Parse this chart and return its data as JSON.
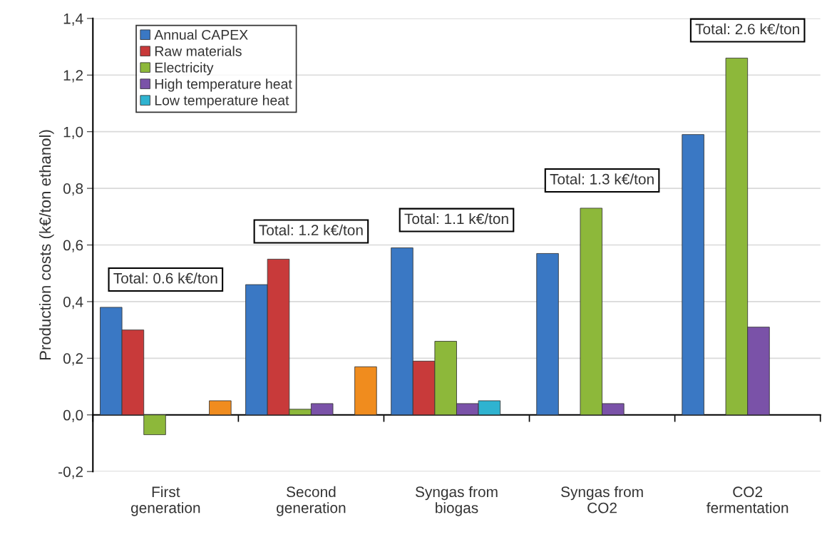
{
  "chart_data": {
    "type": "bar",
    "ylabel": "Production costs (k€/ton ethanol)",
    "categories": [
      "First\ngeneration",
      "Second\ngeneration",
      "Syngas from\nbiogas",
      "Syngas from\nCO2",
      "CO2\nfermentation"
    ],
    "series": [
      {
        "name": "Annual CAPEX",
        "color": "#3a78c4",
        "values": [
          0.38,
          0.46,
          0.59,
          0.57,
          0.99
        ]
      },
      {
        "name": "Raw materials",
        "color": "#c83a3a",
        "values": [
          0.3,
          0.55,
          0.19,
          null,
          null
        ]
      },
      {
        "name": "Electricity",
        "color": "#8db83a",
        "values": [
          -0.07,
          0.02,
          0.26,
          0.73,
          1.26
        ]
      },
      {
        "name": "High temperature heat",
        "color": "#7a52a8",
        "values": [
          null,
          0.04,
          0.04,
          0.04,
          0.31
        ]
      },
      {
        "name": "Low temperature heat",
        "color": "#2fb3d0",
        "values": [
          null,
          null,
          0.05,
          null,
          null
        ]
      },
      {
        "color": "#f08c1e",
        "values": [
          0.05,
          0.17,
          null,
          null,
          null
        ]
      }
    ],
    "ylim": [
      -0.2,
      1.4
    ],
    "yticks": [
      {
        "value": -0.2,
        "label": "-0,2"
      },
      {
        "value": 0,
        "label": "0,0"
      },
      {
        "value": 0.2,
        "label": "0,2"
      },
      {
        "value": 0.4,
        "label": "0,4"
      },
      {
        "value": 0.6,
        "label": "0,6"
      },
      {
        "value": 0.8,
        "label": "0,8"
      },
      {
        "value": 1.0,
        "label": "1,0"
      },
      {
        "value": 1.2,
        "label": "1,2"
      },
      {
        "value": 1.4,
        "label": "1,4"
      }
    ],
    "grid": "y",
    "legend": "top left",
    "annotations": [
      "Total: 0.6 k€/ton",
      "Total: 1.2 k€/ton",
      "Total: 1.1 k€/ton",
      "Total: 1.3 k€/ton",
      "Total: 2.6 k€/ton"
    ]
  }
}
